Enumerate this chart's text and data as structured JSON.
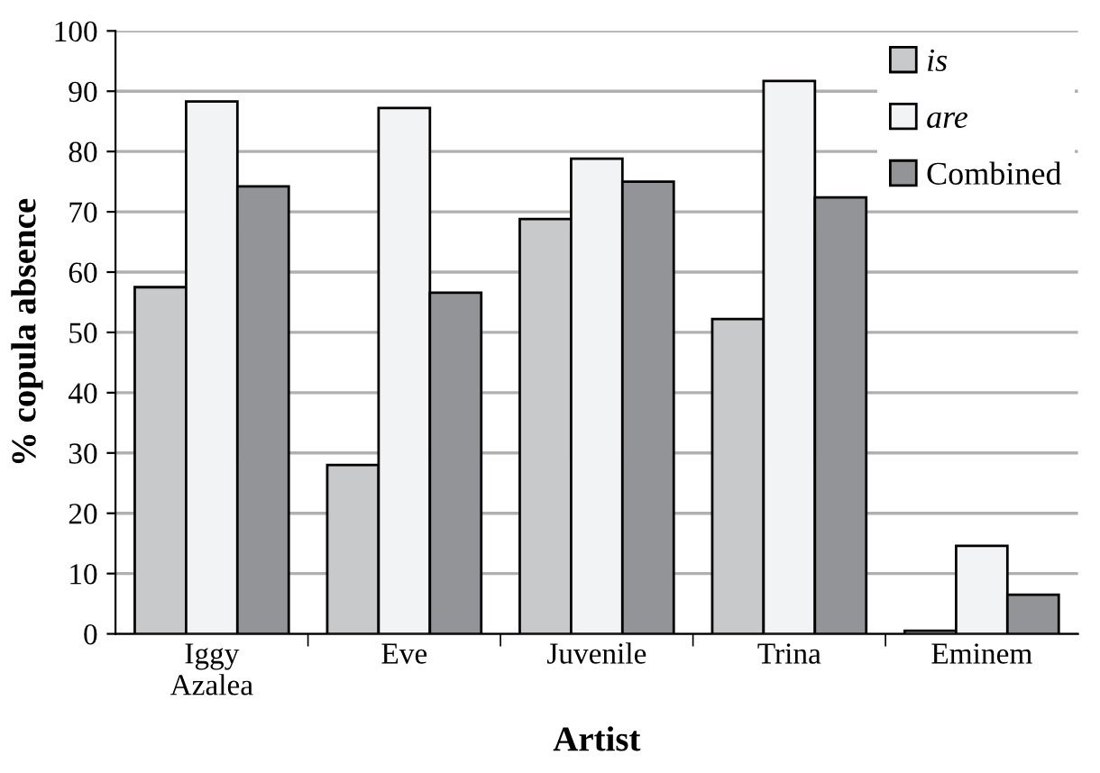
{
  "chart_data": {
    "type": "bar",
    "xlabel": "Artist",
    "ylabel": "% copula absence",
    "categories": [
      "Iggy\nAzalea",
      "Eve",
      "Juvenile",
      "Trina",
      "Eminem"
    ],
    "series": [
      {
        "name": "is",
        "color": "#c8c9cb",
        "values": [
          57.5,
          28,
          68.8,
          52.2,
          0.5
        ]
      },
      {
        "name": "are",
        "color": "#f2f3f5",
        "values": [
          88.3,
          87.2,
          78.8,
          91.7,
          14.6
        ]
      },
      {
        "name": "Combined",
        "color": "#939497",
        "values": [
          74.2,
          56.6,
          75,
          72.4,
          6.5
        ]
      }
    ],
    "ylim": [
      0,
      100
    ],
    "yticks": [
      0,
      10,
      20,
      30,
      40,
      50,
      60,
      70,
      80,
      90,
      100
    ],
    "grid": "y",
    "legend": "top right"
  }
}
